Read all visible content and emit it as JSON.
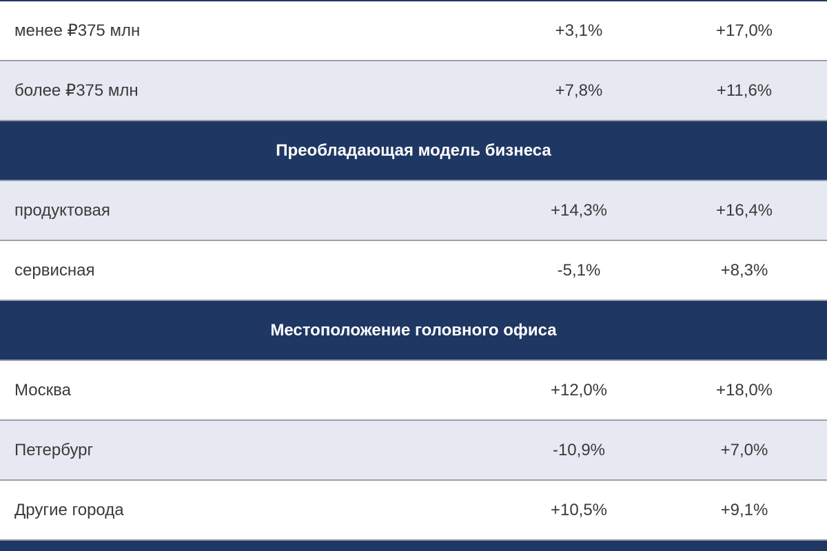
{
  "rows": [
    {
      "type": "data",
      "label": "менее ₽375 млн",
      "v1": "+3,1%",
      "v2": "+17,0%"
    },
    {
      "type": "data",
      "label": "более ₽375 млн",
      "v1": "+7,8%",
      "v2": "+11,6%"
    },
    {
      "type": "section",
      "title": "Преобладающая модель бизнеса"
    },
    {
      "type": "data",
      "label": "продуктовая",
      "v1": "+14,3%",
      "v2": "+16,4%"
    },
    {
      "type": "data",
      "label": "сервисная",
      "v1": "-5,1%",
      "v2": "+8,3%"
    },
    {
      "type": "section",
      "title": "Местоположение головного офиса"
    },
    {
      "type": "data",
      "label": "Москва",
      "v1": "+12,0%",
      "v2": "+18,0%"
    },
    {
      "type": "data",
      "label": "Петербург",
      "v1": "-10,9%",
      "v2": "+7,0%"
    },
    {
      "type": "data",
      "label": "Другие города",
      "v1": "+10,5%",
      "v2": "+9,1%"
    }
  ],
  "colors": {
    "section_bg": "#1f3763",
    "row_gray": "#e6e9f1",
    "row_white": "#ffffff",
    "divider": "#9b9ea6",
    "text": "#3a3a3a"
  }
}
